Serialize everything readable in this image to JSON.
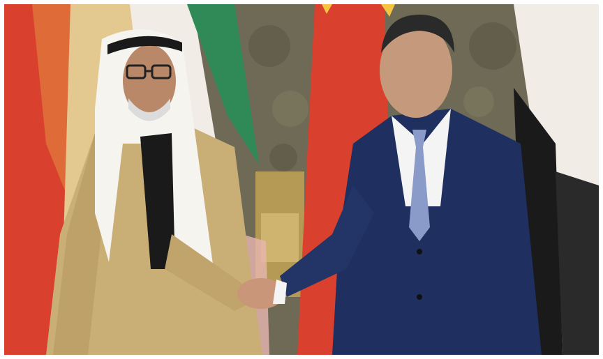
{
  "photo": {
    "scene": "two-men-handshake-in-front-of-flags",
    "colors": {
      "flag_red": "#d9412e",
      "flag_green": "#2f8a57",
      "flag_white": "#f1ece6",
      "flag_black": "#1a1a1a",
      "suit_navy": "#1f2f5f",
      "robe_gold": "#c9ae76",
      "wall_stone": "#6e6a55"
    }
  }
}
